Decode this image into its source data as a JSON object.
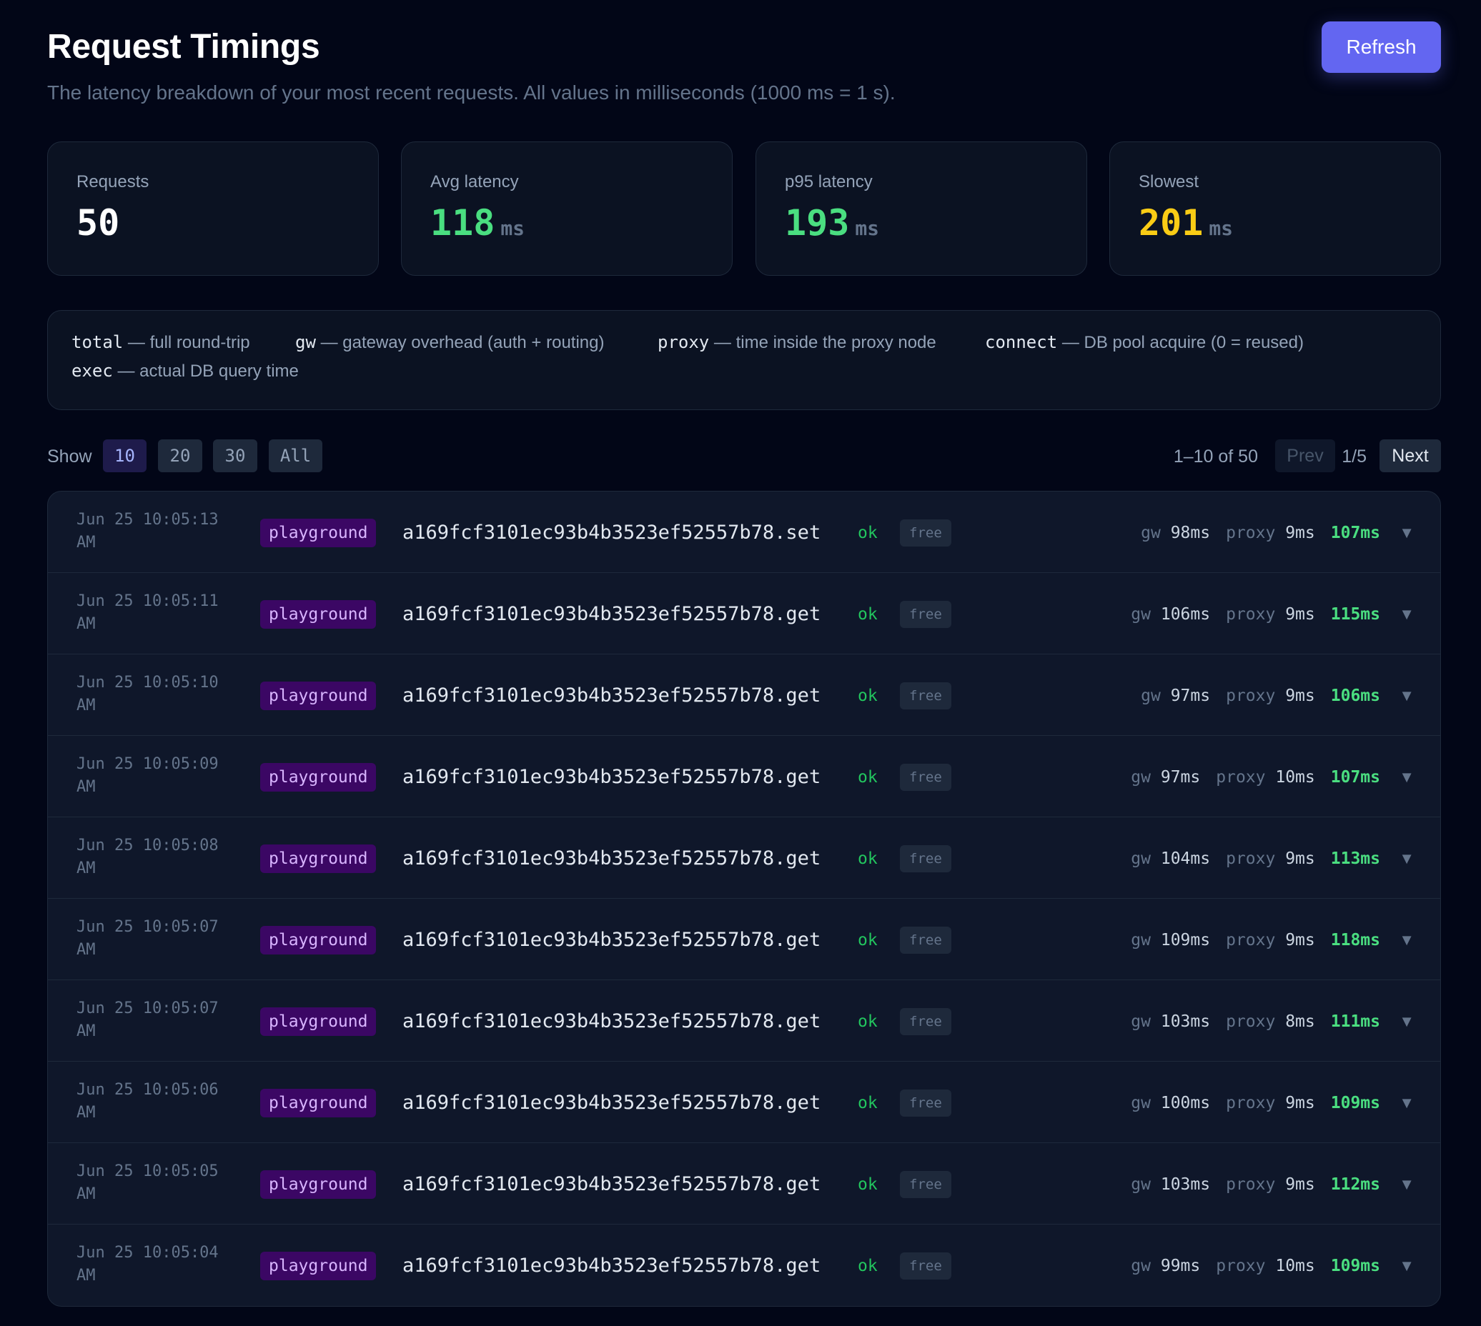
{
  "header": {
    "title": "Request Timings",
    "subtitle": "The latency breakdown of your most recent requests. All values in milliseconds (1000 ms = 1 s).",
    "refresh_label": "Refresh"
  },
  "stats": [
    {
      "label": "Requests",
      "value": "50",
      "unit": "",
      "color": "#ffffff"
    },
    {
      "label": "Avg latency",
      "value": "118",
      "unit": "ms",
      "color": "#4ade80"
    },
    {
      "label": "p95 latency",
      "value": "193",
      "unit": "ms",
      "color": "#4ade80"
    },
    {
      "label": "Slowest",
      "value": "201",
      "unit": "ms",
      "color": "#facc15"
    }
  ],
  "legend": [
    {
      "key": "total",
      "desc": " — full round-trip"
    },
    {
      "key": "gw",
      "desc": " — gateway overhead (auth + routing)"
    },
    {
      "key": "proxy",
      "desc": " — time inside the proxy node"
    },
    {
      "key": "connect",
      "desc": " — DB pool acquire (0 = reused)"
    },
    {
      "key": "exec",
      "desc": " — actual DB query time"
    }
  ],
  "toolbar": {
    "show_label": "Show",
    "page_sizes": [
      "10",
      "20",
      "30",
      "All"
    ],
    "active_page_size": "10",
    "range_label": "1–10 of 50",
    "prev_label": "Prev",
    "page_indicator": "1/5",
    "next_label": "Next"
  },
  "timing_labels": {
    "gw": "gw",
    "proxy": "proxy"
  },
  "rows": [
    {
      "ts_date": "Jun 25 10:05:13",
      "ts_ampm": "AM",
      "env": "playground",
      "method": "a169fcf3101ec93b4b3523ef52557b78.set",
      "status": "ok",
      "tier": "free",
      "gw": "98ms",
      "proxy": "9ms",
      "total": "107ms"
    },
    {
      "ts_date": "Jun 25 10:05:11",
      "ts_ampm": "AM",
      "env": "playground",
      "method": "a169fcf3101ec93b4b3523ef52557b78.get",
      "status": "ok",
      "tier": "free",
      "gw": "106ms",
      "proxy": "9ms",
      "total": "115ms"
    },
    {
      "ts_date": "Jun 25 10:05:10",
      "ts_ampm": "AM",
      "env": "playground",
      "method": "a169fcf3101ec93b4b3523ef52557b78.get",
      "status": "ok",
      "tier": "free",
      "gw": "97ms",
      "proxy": "9ms",
      "total": "106ms"
    },
    {
      "ts_date": "Jun 25 10:05:09",
      "ts_ampm": "AM",
      "env": "playground",
      "method": "a169fcf3101ec93b4b3523ef52557b78.get",
      "status": "ok",
      "tier": "free",
      "gw": "97ms",
      "proxy": "10ms",
      "total": "107ms"
    },
    {
      "ts_date": "Jun 25 10:05:08",
      "ts_ampm": "AM",
      "env": "playground",
      "method": "a169fcf3101ec93b4b3523ef52557b78.get",
      "status": "ok",
      "tier": "free",
      "gw": "104ms",
      "proxy": "9ms",
      "total": "113ms"
    },
    {
      "ts_date": "Jun 25 10:05:07",
      "ts_ampm": "AM",
      "env": "playground",
      "method": "a169fcf3101ec93b4b3523ef52557b78.get",
      "status": "ok",
      "tier": "free",
      "gw": "109ms",
      "proxy": "9ms",
      "total": "118ms"
    },
    {
      "ts_date": "Jun 25 10:05:07",
      "ts_ampm": "AM",
      "env": "playground",
      "method": "a169fcf3101ec93b4b3523ef52557b78.get",
      "status": "ok",
      "tier": "free",
      "gw": "103ms",
      "proxy": "8ms",
      "total": "111ms"
    },
    {
      "ts_date": "Jun 25 10:05:06",
      "ts_ampm": "AM",
      "env": "playground",
      "method": "a169fcf3101ec93b4b3523ef52557b78.get",
      "status": "ok",
      "tier": "free",
      "gw": "100ms",
      "proxy": "9ms",
      "total": "109ms"
    },
    {
      "ts_date": "Jun 25 10:05:05",
      "ts_ampm": "AM",
      "env": "playground",
      "method": "a169fcf3101ec93b4b3523ef52557b78.get",
      "status": "ok",
      "tier": "free",
      "gw": "103ms",
      "proxy": "9ms",
      "total": "112ms"
    },
    {
      "ts_date": "Jun 25 10:05:04",
      "ts_ampm": "AM",
      "env": "playground",
      "method": "a169fcf3101ec93b4b3523ef52557b78.get",
      "status": "ok",
      "tier": "free",
      "gw": "99ms",
      "proxy": "10ms",
      "total": "109ms"
    }
  ],
  "icons": {
    "expand": "chevron-down-icon",
    "expand_glyph": "▼"
  }
}
